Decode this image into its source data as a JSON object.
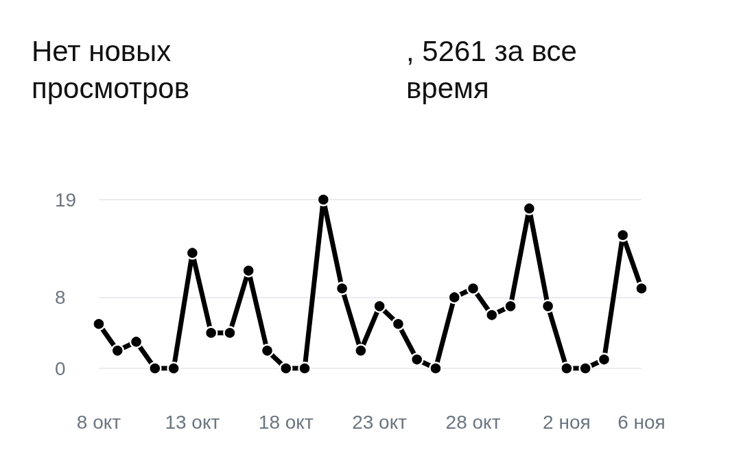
{
  "chart_data": {
    "type": "line",
    "title": "Нет новых просмотров",
    "subtitle": ", 5261 за все время",
    "categories": [
      "8 окт",
      null,
      null,
      null,
      null,
      "13 окт",
      null,
      null,
      null,
      null,
      "18 окт",
      null,
      null,
      null,
      null,
      "23 окт",
      null,
      null,
      null,
      null,
      "28 окт",
      null,
      null,
      null,
      null,
      "2 ноя",
      null,
      null,
      null,
      "6 ноя"
    ],
    "series": [
      {
        "color": "#000000",
        "values": [
          5,
          2,
          3,
          0,
          0,
          13,
          4,
          4,
          11,
          2,
          0,
          0,
          19,
          9,
          2,
          7,
          5,
          1,
          0,
          8,
          9,
          6,
          7,
          18,
          7,
          0,
          0,
          1,
          15,
          9
        ]
      }
    ],
    "ylim": [
      0,
      19
    ],
    "yticks": [
      0,
      8,
      19
    ],
    "grid": "y",
    "marker": "circle",
    "line_style": "solid"
  }
}
